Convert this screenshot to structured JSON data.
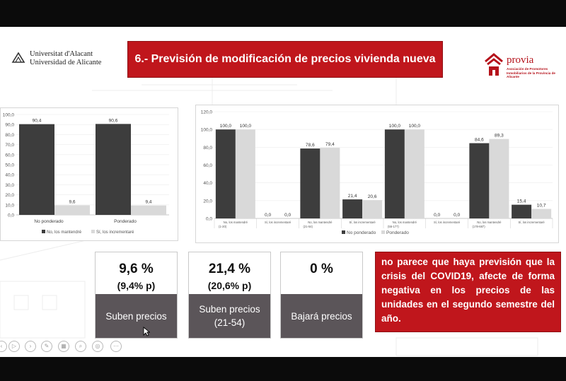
{
  "header": {
    "univ_line1": "Universitat d'Alacant",
    "univ_line2": "Universidad de Alicante",
    "title": "6.- Previsión de modificación de precios vivienda nueva",
    "provia_name": "provia",
    "provia_sub": "Asociación de Promotores Inmobiliarios de la Provincia de Alicante"
  },
  "colors": {
    "dark_bar": "#3d3d3d",
    "light_bar": "#d9d9d9",
    "accent_red": "#c0161c",
    "card_footer": "#5b5559"
  },
  "chart_data": [
    {
      "type": "bar",
      "categories": [
        "No ponderado",
        "Ponderado"
      ],
      "series": [
        {
          "name": "No, los mantendré",
          "values": [
            90.4,
            90.6
          ],
          "labels": [
            "90,4",
            "90,6"
          ]
        },
        {
          "name": "Sí, los incrementaré",
          "values": [
            9.6,
            9.4
          ],
          "labels": [
            "9,6",
            "9,4"
          ]
        }
      ],
      "ylim": [
        0,
        100
      ],
      "yticks": [
        "0,0",
        "10,0",
        "20,0",
        "30,0",
        "40,0",
        "50,0",
        "60,0",
        "70,0",
        "80,0",
        "90,0",
        "100,0"
      ],
      "legend_position": "bottom"
    },
    {
      "type": "bar",
      "categories": [
        "No, los mantendré (1-20)",
        "Sí, los incrementaré (1-20)",
        "No, los mantendré (21-54)",
        "Sí, los incrementaré (21-54)",
        "No, los mantendré (55-177)",
        "Sí, los incrementaré (55-177)",
        "No, los mantendré (178-687)",
        "Sí, los incrementaré (178-687)"
      ],
      "category_labels": [
        "No, los mantendré",
        "Sí, los incrementaré",
        "No, los mantendré",
        "Sí, los incrementaré",
        "No, los mantendré",
        "Sí, los incrementaré",
        "No, los mantendré",
        "Sí, los incrementaré"
      ],
      "group_labels": [
        "(1-20)",
        "(21-54)",
        "(55-177)",
        "(178-687)"
      ],
      "series": [
        {
          "name": "No ponderado",
          "values": [
            100.0,
            0.0,
            78.6,
            21.4,
            100.0,
            0.0,
            84.6,
            15.4
          ],
          "labels": [
            "100,0",
            "0,0",
            "78,6",
            "21,4",
            "100,0",
            "0,0",
            "84,6",
            "15,4"
          ]
        },
        {
          "name": "Ponderado",
          "values": [
            100.0,
            0.0,
            79.4,
            20.6,
            100.0,
            0.0,
            89.3,
            10.7
          ],
          "labels": [
            "100,0",
            "0,0",
            "79,4",
            "20,6",
            "100,0",
            "0,0",
            "89,3",
            "10,7"
          ]
        }
      ],
      "ylim": [
        0,
        120
      ],
      "yticks": [
        "0,0",
        "20,0",
        "40,0",
        "60,0",
        "80,0",
        "100,0",
        "120,0"
      ],
      "legend_position": "bottom"
    }
  ],
  "cards": [
    {
      "pct": "9,6 %",
      "sub": "(9,4% p)",
      "foot1": "Suben precios",
      "foot2": ""
    },
    {
      "pct": "21,4 %",
      "sub": "(20,6% p)",
      "foot1": "Suben precios",
      "foot2": "(21-54)"
    },
    {
      "pct": "0 %",
      "sub": "",
      "foot1": "Bajará precios",
      "foot2": ""
    }
  ],
  "note": "no parece que haya previsión que la crisis del COVID19, afecte de forma negativa en los precios de las unidades en el segundo semestre del año."
}
